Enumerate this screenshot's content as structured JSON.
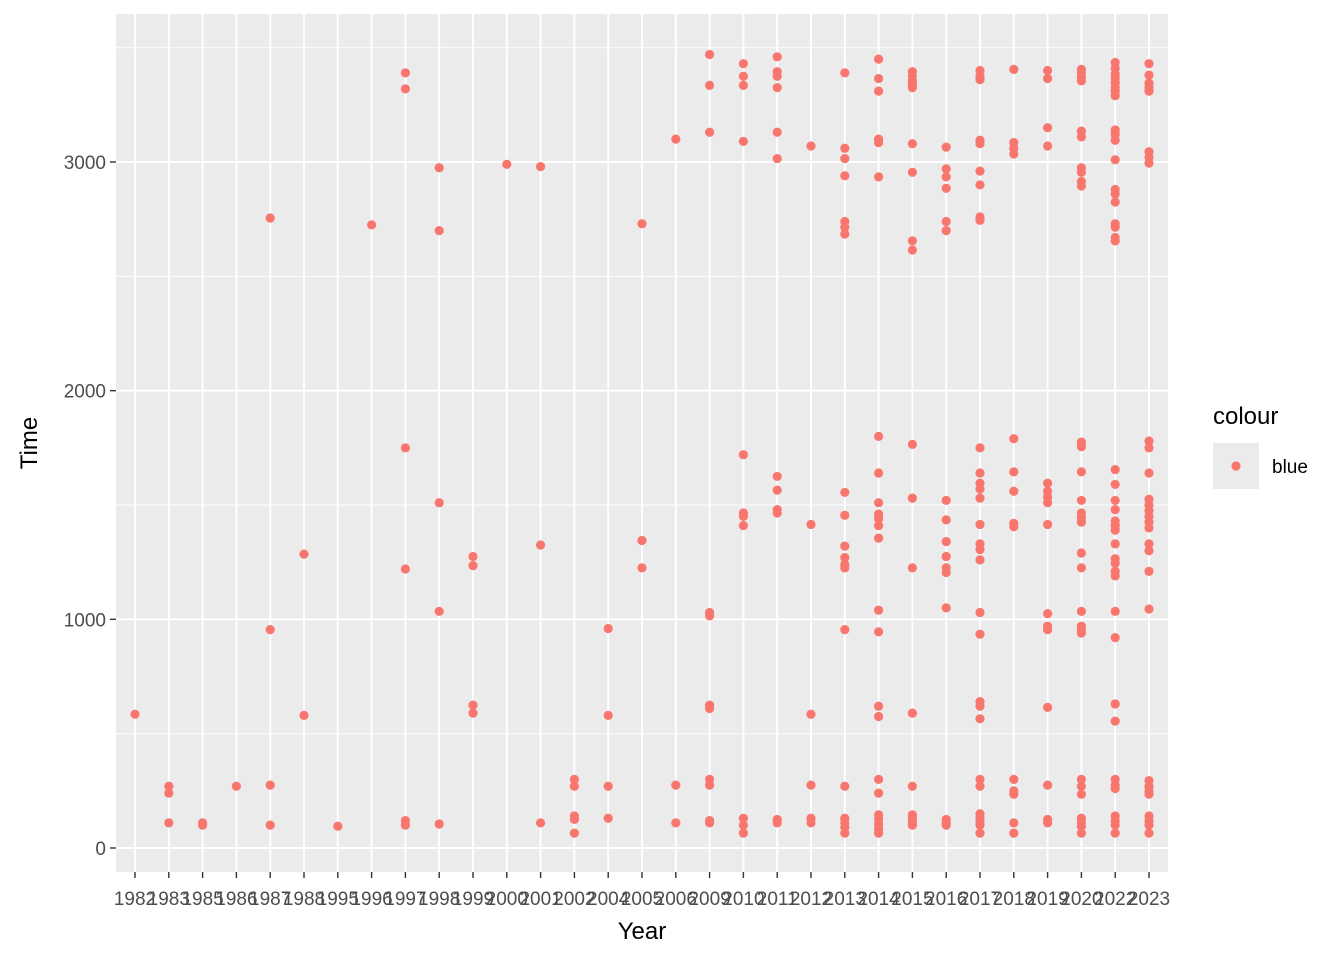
{
  "chart_data": {
    "type": "scatter",
    "xlabel": "Year",
    "ylabel": "Time",
    "x_axis_kind": "discrete",
    "categories": [
      "1982",
      "1983",
      "1985",
      "1986",
      "1987",
      "1988",
      "1995",
      "1996",
      "1997",
      "1998",
      "1999",
      "2000",
      "2001",
      "2002",
      "2004",
      "2005",
      "2006",
      "2009",
      "2010",
      "2011",
      "2012",
      "2013",
      "2014",
      "2015",
      "2016",
      "2017",
      "2018",
      "2019",
      "2020",
      "2022",
      "2023"
    ],
    "y_ticks": [
      0,
      1000,
      2000,
      3000
    ],
    "y_tick_labels": [
      "0",
      "1000",
      "2000",
      "3000"
    ],
    "ylim": [
      -110,
      3580
    ],
    "grid": true,
    "point_color": "#F8766D",
    "panel_color": "#EBEBEB",
    "grid_color": "#FFFFFF",
    "legend": {
      "title": "colour",
      "entries": [
        "blue"
      ],
      "position": "right"
    },
    "points": [
      {
        "x": "1982",
        "y": 585
      },
      {
        "x": "1983",
        "y": 270
      },
      {
        "x": "1983",
        "y": 240
      },
      {
        "x": "1983",
        "y": 110
      },
      {
        "x": "1985",
        "y": 110
      },
      {
        "x": "1985",
        "y": 100
      },
      {
        "x": "1986",
        "y": 270
      },
      {
        "x": "1987",
        "y": 2755
      },
      {
        "x": "1987",
        "y": 955
      },
      {
        "x": "1987",
        "y": 275
      },
      {
        "x": "1987",
        "y": 100
      },
      {
        "x": "1988",
        "y": 1285
      },
      {
        "x": "1988",
        "y": 580
      },
      {
        "x": "1995",
        "y": 95
      },
      {
        "x": "1996",
        "y": 2725
      },
      {
        "x": "1997",
        "y": 3390
      },
      {
        "x": "1997",
        "y": 3320
      },
      {
        "x": "1997",
        "y": 1750
      },
      {
        "x": "1997",
        "y": 1220
      },
      {
        "x": "1997",
        "y": 120
      },
      {
        "x": "1997",
        "y": 100
      },
      {
        "x": "1998",
        "y": 2975
      },
      {
        "x": "1998",
        "y": 2700
      },
      {
        "x": "1998",
        "y": 1510
      },
      {
        "x": "1998",
        "y": 1035
      },
      {
        "x": "1998",
        "y": 105
      },
      {
        "x": "1999",
        "y": 1275
      },
      {
        "x": "1999",
        "y": 1235
      },
      {
        "x": "1999",
        "y": 625
      },
      {
        "x": "1999",
        "y": 590
      },
      {
        "x": "2000",
        "y": 2990
      },
      {
        "x": "2001",
        "y": 2980
      },
      {
        "x": "2001",
        "y": 1325
      },
      {
        "x": "2001",
        "y": 110
      },
      {
        "x": "2002",
        "y": 300
      },
      {
        "x": "2002",
        "y": 270
      },
      {
        "x": "2002",
        "y": 140
      },
      {
        "x": "2002",
        "y": 125
      },
      {
        "x": "2002",
        "y": 65
      },
      {
        "x": "2004",
        "y": 960
      },
      {
        "x": "2004",
        "y": 580
      },
      {
        "x": "2004",
        "y": 270
      },
      {
        "x": "2004",
        "y": 130
      },
      {
        "x": "2005",
        "y": 2730
      },
      {
        "x": "2005",
        "y": 1345
      },
      {
        "x": "2005",
        "y": 1225
      },
      {
        "x": "2006",
        "y": 3100
      },
      {
        "x": "2006",
        "y": 275
      },
      {
        "x": "2006",
        "y": 110
      },
      {
        "x": "2009",
        "y": 3470
      },
      {
        "x": "2009",
        "y": 3335
      },
      {
        "x": "2009",
        "y": 3130
      },
      {
        "x": "2009",
        "y": 1030
      },
      {
        "x": "2009",
        "y": 1015
      },
      {
        "x": "2009",
        "y": 625
      },
      {
        "x": "2009",
        "y": 610
      },
      {
        "x": "2009",
        "y": 300
      },
      {
        "x": "2009",
        "y": 275
      },
      {
        "x": "2009",
        "y": 120
      },
      {
        "x": "2009",
        "y": 110
      },
      {
        "x": "2010",
        "y": 3430
      },
      {
        "x": "2010",
        "y": 3375
      },
      {
        "x": "2010",
        "y": 3335
      },
      {
        "x": "2010",
        "y": 3090
      },
      {
        "x": "2010",
        "y": 1720
      },
      {
        "x": "2010",
        "y": 1465
      },
      {
        "x": "2010",
        "y": 1450
      },
      {
        "x": "2010",
        "y": 1410
      },
      {
        "x": "2010",
        "y": 130
      },
      {
        "x": "2010",
        "y": 100
      },
      {
        "x": "2010",
        "y": 65
      },
      {
        "x": "2011",
        "y": 3460
      },
      {
        "x": "2011",
        "y": 3395
      },
      {
        "x": "2011",
        "y": 3375
      },
      {
        "x": "2011",
        "y": 3325
      },
      {
        "x": "2011",
        "y": 3130
      },
      {
        "x": "2011",
        "y": 3015
      },
      {
        "x": "2011",
        "y": 1625
      },
      {
        "x": "2011",
        "y": 1565
      },
      {
        "x": "2011",
        "y": 1480
      },
      {
        "x": "2011",
        "y": 1465
      },
      {
        "x": "2011",
        "y": 125
      },
      {
        "x": "2011",
        "y": 110
      },
      {
        "x": "2012",
        "y": 3070
      },
      {
        "x": "2012",
        "y": 1415
      },
      {
        "x": "2012",
        "y": 585
      },
      {
        "x": "2012",
        "y": 275
      },
      {
        "x": "2012",
        "y": 130
      },
      {
        "x": "2012",
        "y": 110
      },
      {
        "x": "2013",
        "y": 3390
      },
      {
        "x": "2013",
        "y": 3060
      },
      {
        "x": "2013",
        "y": 3015
      },
      {
        "x": "2013",
        "y": 2940
      },
      {
        "x": "2013",
        "y": 2740
      },
      {
        "x": "2013",
        "y": 2715
      },
      {
        "x": "2013",
        "y": 2685
      },
      {
        "x": "2013",
        "y": 1555
      },
      {
        "x": "2013",
        "y": 1455
      },
      {
        "x": "2013",
        "y": 1320
      },
      {
        "x": "2013",
        "y": 1270
      },
      {
        "x": "2013",
        "y": 1240
      },
      {
        "x": "2013",
        "y": 1225
      },
      {
        "x": "2013",
        "y": 955
      },
      {
        "x": "2013",
        "y": 270
      },
      {
        "x": "2013",
        "y": 130
      },
      {
        "x": "2013",
        "y": 110
      },
      {
        "x": "2013",
        "y": 90
      },
      {
        "x": "2013",
        "y": 65
      },
      {
        "x": "2014",
        "y": 3450
      },
      {
        "x": "2014",
        "y": 3365
      },
      {
        "x": "2014",
        "y": 3310
      },
      {
        "x": "2014",
        "y": 3100
      },
      {
        "x": "2014",
        "y": 3085
      },
      {
        "x": "2014",
        "y": 2935
      },
      {
        "x": "2014",
        "y": 1800
      },
      {
        "x": "2014",
        "y": 1640
      },
      {
        "x": "2014",
        "y": 1510
      },
      {
        "x": "2014",
        "y": 1460
      },
      {
        "x": "2014",
        "y": 1440
      },
      {
        "x": "2014",
        "y": 1410
      },
      {
        "x": "2014",
        "y": 1355
      },
      {
        "x": "2014",
        "y": 1040
      },
      {
        "x": "2014",
        "y": 945
      },
      {
        "x": "2014",
        "y": 620
      },
      {
        "x": "2014",
        "y": 575
      },
      {
        "x": "2014",
        "y": 300
      },
      {
        "x": "2014",
        "y": 240
      },
      {
        "x": "2014",
        "y": 145
      },
      {
        "x": "2014",
        "y": 125
      },
      {
        "x": "2014",
        "y": 105
      },
      {
        "x": "2014",
        "y": 85
      },
      {
        "x": "2014",
        "y": 65
      },
      {
        "x": "2015",
        "y": 3395
      },
      {
        "x": "2015",
        "y": 3375
      },
      {
        "x": "2015",
        "y": 3355
      },
      {
        "x": "2015",
        "y": 3340
      },
      {
        "x": "2015",
        "y": 3325
      },
      {
        "x": "2015",
        "y": 3080
      },
      {
        "x": "2015",
        "y": 2955
      },
      {
        "x": "2015",
        "y": 2655
      },
      {
        "x": "2015",
        "y": 2615
      },
      {
        "x": "2015",
        "y": 1765
      },
      {
        "x": "2015",
        "y": 1530
      },
      {
        "x": "2015",
        "y": 1225
      },
      {
        "x": "2015",
        "y": 590
      },
      {
        "x": "2015",
        "y": 270
      },
      {
        "x": "2015",
        "y": 145
      },
      {
        "x": "2015",
        "y": 130
      },
      {
        "x": "2015",
        "y": 115
      },
      {
        "x": "2015",
        "y": 100
      },
      {
        "x": "2016",
        "y": 3065
      },
      {
        "x": "2016",
        "y": 2970
      },
      {
        "x": "2016",
        "y": 2935
      },
      {
        "x": "2016",
        "y": 2885
      },
      {
        "x": "2016",
        "y": 2740
      },
      {
        "x": "2016",
        "y": 2700
      },
      {
        "x": "2016",
        "y": 1520
      },
      {
        "x": "2016",
        "y": 1435
      },
      {
        "x": "2016",
        "y": 1340
      },
      {
        "x": "2016",
        "y": 1275
      },
      {
        "x": "2016",
        "y": 1225
      },
      {
        "x": "2016",
        "y": 1205
      },
      {
        "x": "2016",
        "y": 1050
      },
      {
        "x": "2016",
        "y": 125
      },
      {
        "x": "2016",
        "y": 110
      },
      {
        "x": "2016",
        "y": 100
      },
      {
        "x": "2017",
        "y": 3400
      },
      {
        "x": "2017",
        "y": 3375
      },
      {
        "x": "2017",
        "y": 3360
      },
      {
        "x": "2017",
        "y": 3095
      },
      {
        "x": "2017",
        "y": 3080
      },
      {
        "x": "2017",
        "y": 2960
      },
      {
        "x": "2017",
        "y": 2900
      },
      {
        "x": "2017",
        "y": 2760
      },
      {
        "x": "2017",
        "y": 2745
      },
      {
        "x": "2017",
        "y": 1750
      },
      {
        "x": "2017",
        "y": 1640
      },
      {
        "x": "2017",
        "y": 1595
      },
      {
        "x": "2017",
        "y": 1570
      },
      {
        "x": "2017",
        "y": 1530
      },
      {
        "x": "2017",
        "y": 1415
      },
      {
        "x": "2017",
        "y": 1330
      },
      {
        "x": "2017",
        "y": 1305
      },
      {
        "x": "2017",
        "y": 1260
      },
      {
        "x": "2017",
        "y": 1030
      },
      {
        "x": "2017",
        "y": 935
      },
      {
        "x": "2017",
        "y": 640
      },
      {
        "x": "2017",
        "y": 620
      },
      {
        "x": "2017",
        "y": 565
      },
      {
        "x": "2017",
        "y": 300
      },
      {
        "x": "2017",
        "y": 270
      },
      {
        "x": "2017",
        "y": 150
      },
      {
        "x": "2017",
        "y": 130
      },
      {
        "x": "2017",
        "y": 115
      },
      {
        "x": "2017",
        "y": 100
      },
      {
        "x": "2017",
        "y": 65
      },
      {
        "x": "2018",
        "y": 3405
      },
      {
        "x": "2018",
        "y": 3085
      },
      {
        "x": "2018",
        "y": 3060
      },
      {
        "x": "2018",
        "y": 3035
      },
      {
        "x": "2018",
        "y": 1790
      },
      {
        "x": "2018",
        "y": 1645
      },
      {
        "x": "2018",
        "y": 1560
      },
      {
        "x": "2018",
        "y": 1420
      },
      {
        "x": "2018",
        "y": 1405
      },
      {
        "x": "2018",
        "y": 300
      },
      {
        "x": "2018",
        "y": 250
      },
      {
        "x": "2018",
        "y": 235
      },
      {
        "x": "2018",
        "y": 110
      },
      {
        "x": "2018",
        "y": 65
      },
      {
        "x": "2019",
        "y": 3400
      },
      {
        "x": "2019",
        "y": 3365
      },
      {
        "x": "2019",
        "y": 3150
      },
      {
        "x": "2019",
        "y": 3070
      },
      {
        "x": "2019",
        "y": 1595
      },
      {
        "x": "2019",
        "y": 1560
      },
      {
        "x": "2019",
        "y": 1535
      },
      {
        "x": "2019",
        "y": 1510
      },
      {
        "x": "2019",
        "y": 1415
      },
      {
        "x": "2019",
        "y": 1025
      },
      {
        "x": "2019",
        "y": 970
      },
      {
        "x": "2019",
        "y": 955
      },
      {
        "x": "2019",
        "y": 615
      },
      {
        "x": "2019",
        "y": 275
      },
      {
        "x": "2019",
        "y": 125
      },
      {
        "x": "2019",
        "y": 110
      },
      {
        "x": "2020",
        "y": 3405
      },
      {
        "x": "2020",
        "y": 3390
      },
      {
        "x": "2020",
        "y": 3370
      },
      {
        "x": "2020",
        "y": 3355
      },
      {
        "x": "2020",
        "y": 3135
      },
      {
        "x": "2020",
        "y": 3110
      },
      {
        "x": "2020",
        "y": 2975
      },
      {
        "x": "2020",
        "y": 2955
      },
      {
        "x": "2020",
        "y": 2915
      },
      {
        "x": "2020",
        "y": 2895
      },
      {
        "x": "2020",
        "y": 1775
      },
      {
        "x": "2020",
        "y": 1755
      },
      {
        "x": "2020",
        "y": 1645
      },
      {
        "x": "2020",
        "y": 1520
      },
      {
        "x": "2020",
        "y": 1465
      },
      {
        "x": "2020",
        "y": 1445
      },
      {
        "x": "2020",
        "y": 1425
      },
      {
        "x": "2020",
        "y": 1290
      },
      {
        "x": "2020",
        "y": 1225
      },
      {
        "x": "2020",
        "y": 1035
      },
      {
        "x": "2020",
        "y": 970
      },
      {
        "x": "2020",
        "y": 955
      },
      {
        "x": "2020",
        "y": 940
      },
      {
        "x": "2020",
        "y": 300
      },
      {
        "x": "2020",
        "y": 270
      },
      {
        "x": "2020",
        "y": 235
      },
      {
        "x": "2020",
        "y": 130
      },
      {
        "x": "2020",
        "y": 110
      },
      {
        "x": "2020",
        "y": 95
      },
      {
        "x": "2020",
        "y": 65
      },
      {
        "x": "2022",
        "y": 3435
      },
      {
        "x": "2022",
        "y": 3410
      },
      {
        "x": "2022",
        "y": 3385
      },
      {
        "x": "2022",
        "y": 3365
      },
      {
        "x": "2022",
        "y": 3345
      },
      {
        "x": "2022",
        "y": 3325
      },
      {
        "x": "2022",
        "y": 3310
      },
      {
        "x": "2022",
        "y": 3290
      },
      {
        "x": "2022",
        "y": 3140
      },
      {
        "x": "2022",
        "y": 3120
      },
      {
        "x": "2022",
        "y": 3095
      },
      {
        "x": "2022",
        "y": 3010
      },
      {
        "x": "2022",
        "y": 2880
      },
      {
        "x": "2022",
        "y": 2860
      },
      {
        "x": "2022",
        "y": 2825
      },
      {
        "x": "2022",
        "y": 2730
      },
      {
        "x": "2022",
        "y": 2715
      },
      {
        "x": "2022",
        "y": 2670
      },
      {
        "x": "2022",
        "y": 2655
      },
      {
        "x": "2022",
        "y": 1655
      },
      {
        "x": "2022",
        "y": 1590
      },
      {
        "x": "2022",
        "y": 1520
      },
      {
        "x": "2022",
        "y": 1480
      },
      {
        "x": "2022",
        "y": 1430
      },
      {
        "x": "2022",
        "y": 1410
      },
      {
        "x": "2022",
        "y": 1390
      },
      {
        "x": "2022",
        "y": 1330
      },
      {
        "x": "2022",
        "y": 1265
      },
      {
        "x": "2022",
        "y": 1245
      },
      {
        "x": "2022",
        "y": 1210
      },
      {
        "x": "2022",
        "y": 1190
      },
      {
        "x": "2022",
        "y": 1035
      },
      {
        "x": "2022",
        "y": 920
      },
      {
        "x": "2022",
        "y": 630
      },
      {
        "x": "2022",
        "y": 555
      },
      {
        "x": "2022",
        "y": 300
      },
      {
        "x": "2022",
        "y": 275
      },
      {
        "x": "2022",
        "y": 260
      },
      {
        "x": "2022",
        "y": 140
      },
      {
        "x": "2022",
        "y": 120
      },
      {
        "x": "2022",
        "y": 100
      },
      {
        "x": "2022",
        "y": 65
      },
      {
        "x": "2023",
        "y": 3430
      },
      {
        "x": "2023",
        "y": 3380
      },
      {
        "x": "2023",
        "y": 3345
      },
      {
        "x": "2023",
        "y": 3325
      },
      {
        "x": "2023",
        "y": 3310
      },
      {
        "x": "2023",
        "y": 3045
      },
      {
        "x": "2023",
        "y": 3020
      },
      {
        "x": "2023",
        "y": 2995
      },
      {
        "x": "2023",
        "y": 1780
      },
      {
        "x": "2023",
        "y": 1750
      },
      {
        "x": "2023",
        "y": 1640
      },
      {
        "x": "2023",
        "y": 1525
      },
      {
        "x": "2023",
        "y": 1500
      },
      {
        "x": "2023",
        "y": 1475
      },
      {
        "x": "2023",
        "y": 1450
      },
      {
        "x": "2023",
        "y": 1425
      },
      {
        "x": "2023",
        "y": 1400
      },
      {
        "x": "2023",
        "y": 1330
      },
      {
        "x": "2023",
        "y": 1300
      },
      {
        "x": "2023",
        "y": 1210
      },
      {
        "x": "2023",
        "y": 1045
      },
      {
        "x": "2023",
        "y": 295
      },
      {
        "x": "2023",
        "y": 270
      },
      {
        "x": "2023",
        "y": 250
      },
      {
        "x": "2023",
        "y": 235
      },
      {
        "x": "2023",
        "y": 140
      },
      {
        "x": "2023",
        "y": 120
      },
      {
        "x": "2023",
        "y": 100
      },
      {
        "x": "2023",
        "y": 65
      }
    ]
  }
}
